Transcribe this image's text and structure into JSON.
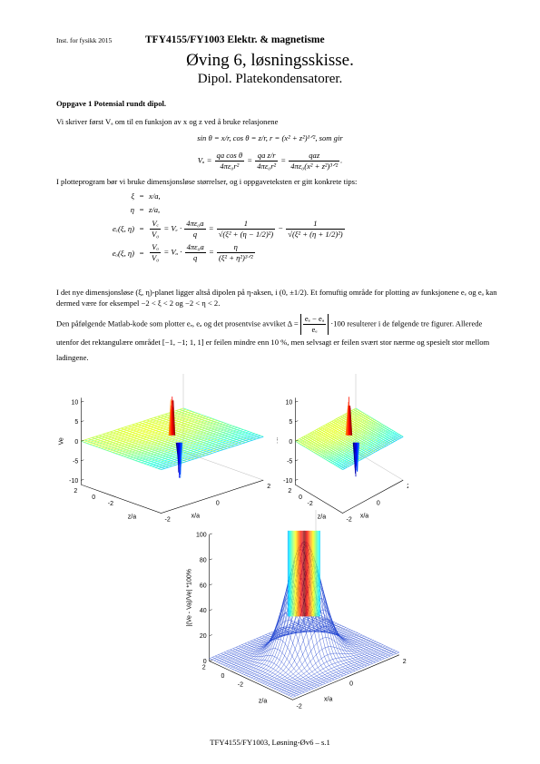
{
  "header": {
    "left": "Inst. for fysikk 2015",
    "course": "TFY4155/FY1003 Elektr. & magnetisme"
  },
  "title": "Øving 6, løsningsskisse.",
  "subtitle": "Dipol. Platekondensatorer.",
  "section": "Oppgave 1 Potensial rundt dipol.",
  "paragraphs": [
    [
      "Vi skriver først Vₐ om til en funksjon av x og z ved å bruke relasjonene"
    ],
    [
      "I plotteprogram bør vi bruke dimensjonsløse størrelser, og i oppgaveteksten er gitt konkrete tips:"
    ],
    [
      "I det nye dimensjonsløse (ξ, η)-planet ligger altså dipolen på η-aksen, i (0, ±1/2). Et fornuftig område for plotting av funksjonene eₑ og eₐ kan dermed være for eksempel −2 < ξ < 2 og −2 < η < 2."
    ],
    [
      "Den påfølgende Matlab-kode som plotter eₑ, eₐ og det prosentvise avviket Δ = ",
      {
        "num": "eₑ − eₐ",
        "den": "eₑ",
        "abs": true
      },
      " ·100 resulterer i de følgende tre figurer. Allerede utenfor det rektangulære området [−1, −1;  1, 1] er feilen mindre enn 10 %, men selvsagt er feilen svært stor nærme og spesielt stor mellom ladingene."
    ]
  ],
  "equations": {
    "trig": [
      "sin θ = x/r,    cos θ = z/r,    r = (x² + z²)¹ᐟ²,    som gir"
    ],
    "va": [
      "Vₐ = ",
      {
        "num": "qa cos θ",
        "den": "4πε₀r²"
      },
      " = ",
      {
        "num": "qa z/r",
        "den": "4πε₀r²"
      },
      " = ",
      {
        "num": "qaz",
        "den": "4πε₀(x² + z²)³ᐟ²"
      },
      "."
    ],
    "defs": [
      {
        "lhs": "ξ",
        "rel": "=",
        "rhs": [
          "x/a,"
        ]
      },
      {
        "lhs": "η",
        "rel": "=",
        "rhs": [
          "z/a,"
        ]
      },
      {
        "lhs": "eₑ(ξ, η)",
        "rel": "=",
        "rhs": [
          {
            "num": "Vₑ",
            "den": "V₀"
          },
          " = Vₑ · ",
          {
            "num": "4πε₀a",
            "den": "q"
          },
          " = ",
          {
            "num": "1",
            "den": "√(ξ² + (η − 1/2)²)"
          },
          " − ",
          {
            "num": "1",
            "den": "√(ξ² + (η + 1/2)²)"
          }
        ]
      },
      {
        "lhs": "eₐ(ξ, η)",
        "rel": "=",
        "rhs": [
          {
            "num": "Vₐ",
            "den": "V₀"
          },
          " = Vₐ · ",
          {
            "num": "4πε₀a",
            "den": "q"
          },
          " = ",
          {
            "num": "η",
            "den": "(ξ² + η²)³ᐟ²"
          }
        ]
      }
    ]
  },
  "figures": [
    {
      "zlabel": "Ve",
      "zticks": [
        "10",
        "5",
        "0",
        "-5",
        "-10"
      ],
      "ylabel": "z/a",
      "yticks": [
        "2",
        "0",
        "-2"
      ],
      "xlabel": "x/a",
      "xticks": [
        "-2",
        "0",
        "2"
      ]
    },
    {
      "zlabel": "Va",
      "zticks": [
        "10",
        "5",
        "0",
        "-5",
        "-10"
      ],
      "ylabel": "z/a",
      "yticks": [
        "2",
        "0",
        "-2"
      ],
      "xlabel": "x/a",
      "xticks": [
        "-2",
        "0",
        "2"
      ]
    },
    {
      "zlabel": "|(Ve - Va)/Ve| *100%",
      "zticks": [
        "100",
        "80",
        "60",
        "40",
        "20",
        "0"
      ],
      "ylabel": "z/a",
      "yticks": [
        "2",
        "0",
        "-2"
      ],
      "xlabel": "x/a",
      "xticks": [
        "-2",
        "0",
        "2"
      ]
    }
  ],
  "footer": "TFY4155/FY1003, Løsning-Øv6 – s.1"
}
